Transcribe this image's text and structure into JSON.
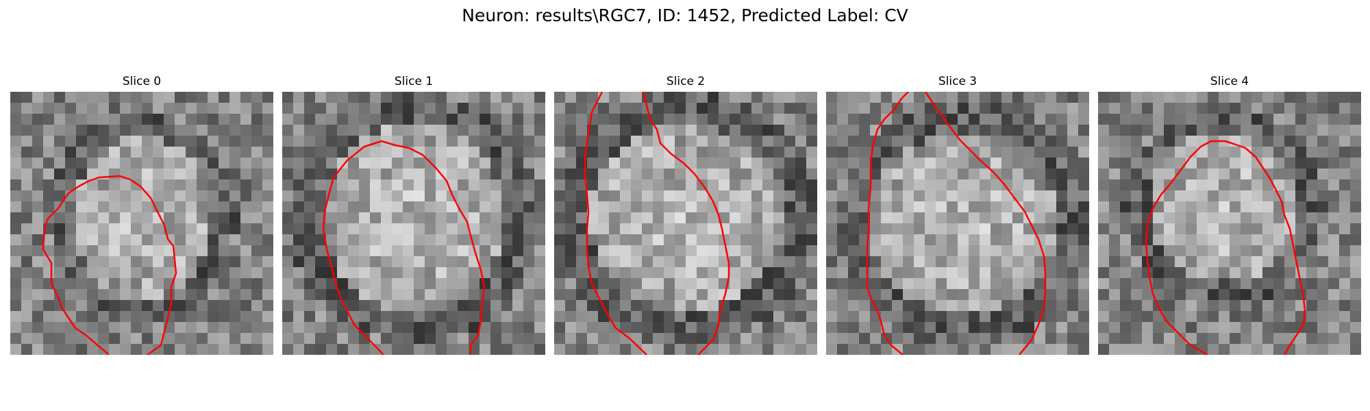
{
  "figure": {
    "title": "Neuron: results\\RGC7, ID: 1452, Predicted Label: CV",
    "contour_color": "#ff0000"
  },
  "slices": [
    {
      "title": "Slice 0"
    },
    {
      "title": "Slice 1"
    },
    {
      "title": "Slice 2"
    },
    {
      "title": "Slice 3"
    },
    {
      "title": "Slice 4"
    }
  ]
}
